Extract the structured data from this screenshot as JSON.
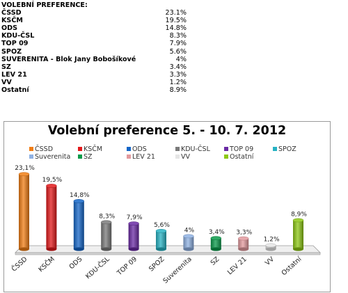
{
  "table": {
    "heading": "VOLEBNÍ PREFERENCE:",
    "rows": [
      {
        "name": "ČSSD",
        "value": "23.1%"
      },
      {
        "name": "KSČM",
        "value": "19.5%"
      },
      {
        "name": "ODS",
        "value": "14.8%"
      },
      {
        "name": "KDU-ČSL",
        "value": "8.3%"
      },
      {
        "name": "TOP 09",
        "value": "7.9%"
      },
      {
        "name": "SPOZ",
        "value": "5.6%"
      },
      {
        "name": "SUVERENITA - Blok Jany Bobošíkové",
        "value": "4%"
      },
      {
        "name": "SZ",
        "value": "3.4%"
      },
      {
        "name": "LEV 21",
        "value": "3.3%"
      },
      {
        "name": "VV",
        "value": "1.2%"
      },
      {
        "name": "Ostatní",
        "value": "8.9%"
      }
    ]
  },
  "chart_data": {
    "type": "bar",
    "title": "Volební preference 5. - 10. 7. 2012",
    "xlabel": "",
    "ylabel": "",
    "ylim": [
      0,
      25
    ],
    "grid": false,
    "legend_position": "top",
    "categories": [
      "ČSSD",
      "KSČM",
      "ODS",
      "KDU-ČSL",
      "TOP 09",
      "SPOZ",
      "Suverenita",
      "SZ",
      "LEV 21",
      "VV",
      "Ostatní"
    ],
    "legend_labels": [
      "ČSSD",
      "KSČM",
      "ODS",
      "KDU-ČSL",
      "TOP 09",
      "SPOZ",
      "Suverenita",
      "SZ",
      "LEV 21",
      "VV",
      "Ostatní"
    ],
    "values": [
      23.1,
      19.5,
      14.8,
      8.3,
      7.9,
      5.6,
      4,
      3.4,
      3.3,
      1.2,
      8.9
    ],
    "data_labels": [
      "23,1%",
      "19,5%",
      "14,8%",
      "8,3%",
      "7,9%",
      "5,6%",
      "4%",
      "3,4%",
      "3,3%",
      "1,2%",
      "8,9%"
    ],
    "colors": [
      "#f07d14",
      "#e3191b",
      "#1466c8",
      "#7a7a7a",
      "#6a2aa4",
      "#26b2c3",
      "#8fb1e3",
      "#0a9a4a",
      "#e39a9e",
      "#e5e5e5",
      "#8dc814"
    ]
  }
}
